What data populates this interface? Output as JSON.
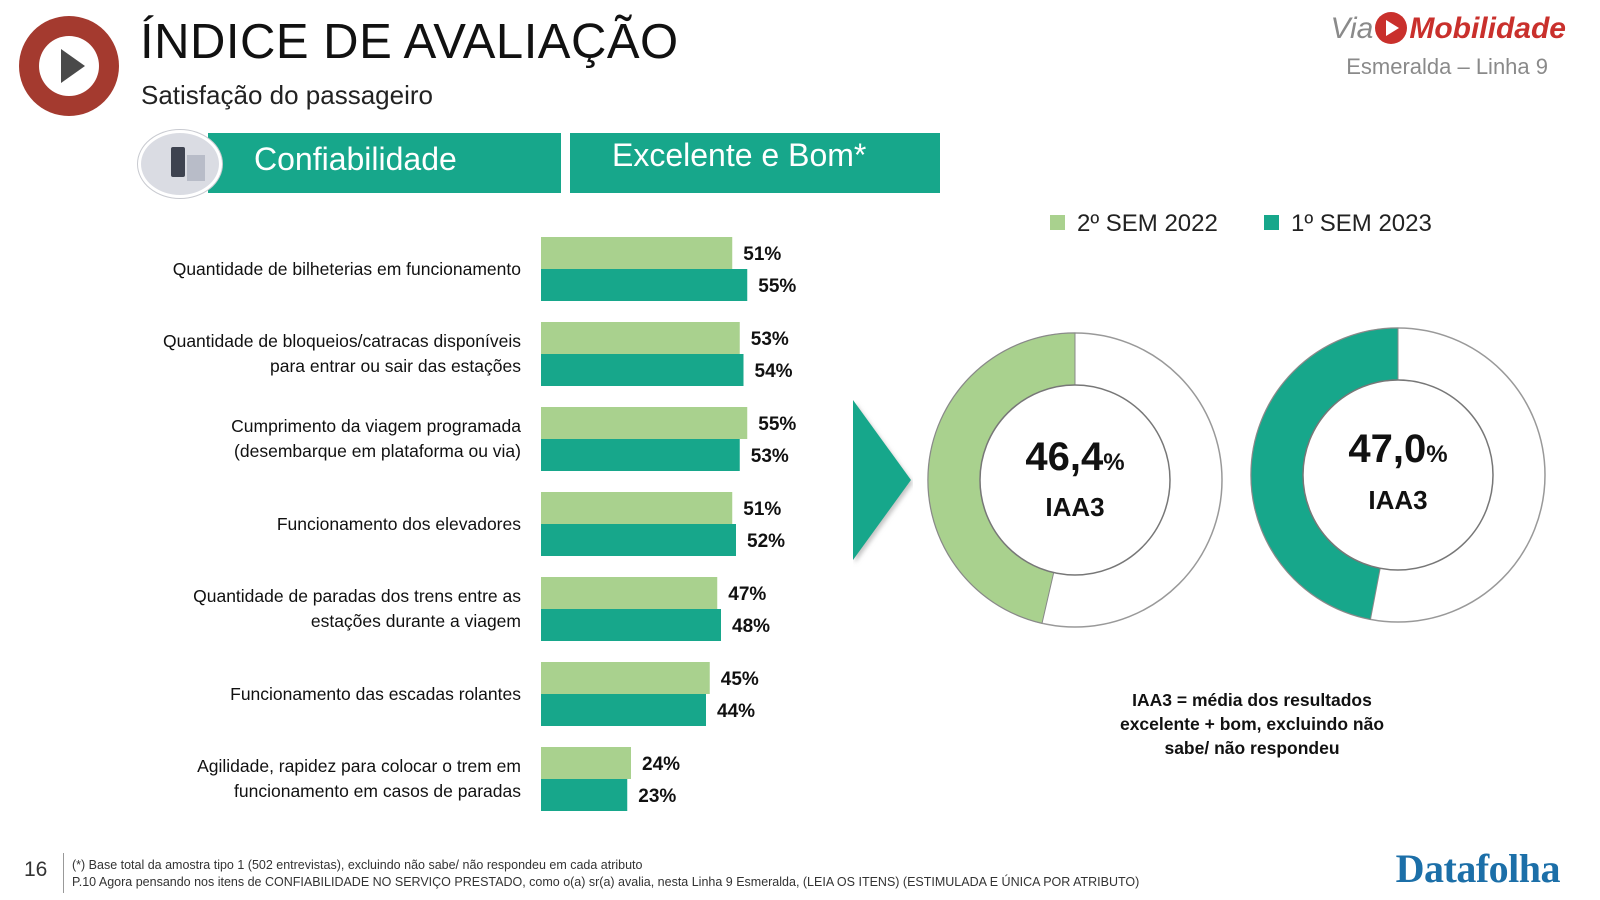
{
  "header": {
    "title": "ÍNDICE DE AVALIAÇÃO",
    "subtitle": "Satisfação do passageiro",
    "brand_via": "Via",
    "brand_mob": "Mobilidade",
    "brand_line": "Esmeralda – Linha 9"
  },
  "section": {
    "category": "Confiabilidade",
    "metric": "Excelente e Bom*"
  },
  "legend": [
    {
      "label": "2º SEM 2022",
      "color": "#a9d18e"
    },
    {
      "label": "1º SEM 2023",
      "color": "#17a78b"
    }
  ],
  "donuts": [
    {
      "value_text": "46,4",
      "pct": "%",
      "sub": "IAA3",
      "fraction": 0.464,
      "color": "#a9d18e"
    },
    {
      "value_text": "47,0",
      "pct": "%",
      "sub": "IAA3",
      "fraction": 0.47,
      "color": "#17a78b"
    }
  ],
  "note": "IAA3 = média dos resultados excelente + bom, excluindo não sabe/ não respondeu",
  "footer": {
    "page": "16",
    "line1": "(*) Base total da amostra tipo 1 (502 entrevistas), excluindo não sabe/ não respondeu em cada atributo",
    "line2": "P.10 Agora pensando nos itens de CONFIABILIDADE NO SERVIÇO PRESTADO, como o(a) sr(a) avalia, nesta Linha 9 Esmeralda, (LEIA OS ITENS) (ESTIMULADA E ÚNICA POR ATRIBUTO)",
    "logo": "Datafolha"
  },
  "chart_data": {
    "type": "bar",
    "orientation": "horizontal",
    "categories": [
      [
        "Quantidade de bilheterias em funcionamento"
      ],
      [
        "Quantidade de bloqueios/catracas disponíveis",
        "para entrar ou sair das estações"
      ],
      [
        "Cumprimento da viagem programada",
        "(desembarque em plataforma ou via)"
      ],
      [
        "Funcionamento dos elevadores"
      ],
      [
        "Quantidade de paradas dos trens entre as",
        "estações durante a viagem"
      ],
      [
        "Funcionamento das escadas rolantes"
      ],
      [
        "Agilidade, rapidez para colocar o trem em",
        "funcionamento em casos de paradas"
      ]
    ],
    "series": [
      {
        "name": "2º SEM 2022",
        "color": "#a9d18e",
        "values": [
          51,
          53,
          55,
          51,
          47,
          45,
          24
        ]
      },
      {
        "name": "1º SEM 2023",
        "color": "#17a78b",
        "values": [
          55,
          54,
          53,
          52,
          48,
          44,
          23
        ]
      }
    ],
    "value_suffix": "%",
    "legend_position": "top-right",
    "grid": false
  }
}
